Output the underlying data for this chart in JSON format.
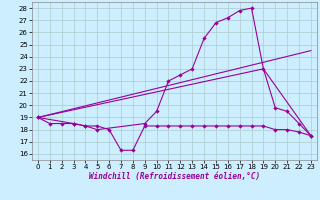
{
  "background_color": "#cceeff",
  "line_color": "#990099",
  "grid_color": "#aacccc",
  "xlabel": "Windchill (Refroidissement éolien,°C)",
  "ylabel_ticks": [
    16,
    17,
    18,
    19,
    20,
    21,
    22,
    23,
    24,
    25,
    26,
    27,
    28
  ],
  "xlim": [
    -0.5,
    23.5
  ],
  "ylim": [
    15.5,
    28.5
  ],
  "xticks": [
    0,
    1,
    2,
    3,
    4,
    5,
    6,
    7,
    8,
    9,
    10,
    11,
    12,
    13,
    14,
    15,
    16,
    17,
    18,
    19,
    20,
    21,
    22,
    23
  ],
  "series": [
    {
      "x": [
        0,
        1,
        2,
        3,
        4,
        5,
        6,
        7,
        8,
        9,
        10,
        11,
        12,
        13,
        14,
        15,
        16,
        17,
        18,
        19,
        20,
        21,
        22,
        23
      ],
      "y": [
        19,
        18.5,
        18.5,
        18.5,
        18.3,
        18.3,
        18.0,
        16.3,
        16.3,
        18.3,
        18.3,
        18.3,
        18.3,
        18.3,
        18.3,
        18.3,
        18.3,
        18.3,
        18.3,
        18.3,
        18.0,
        18.0,
        17.8,
        17.5
      ],
      "has_markers": true
    },
    {
      "x": [
        0,
        3,
        4,
        5,
        9,
        10,
        11,
        12,
        13,
        14,
        15,
        16,
        17,
        18,
        19,
        20,
        21,
        22,
        23
      ],
      "y": [
        19,
        18.5,
        18.3,
        18.0,
        18.5,
        19.5,
        22.0,
        22.5,
        23.0,
        25.5,
        26.8,
        27.2,
        27.8,
        28.0,
        23.0,
        19.8,
        19.5,
        18.5,
        17.5
      ],
      "has_markers": true
    },
    {
      "x": [
        0,
        23
      ],
      "y": [
        19,
        24.5
      ],
      "has_markers": false
    },
    {
      "x": [
        0,
        19,
        23
      ],
      "y": [
        19,
        23.0,
        17.5
      ],
      "has_markers": false
    }
  ]
}
